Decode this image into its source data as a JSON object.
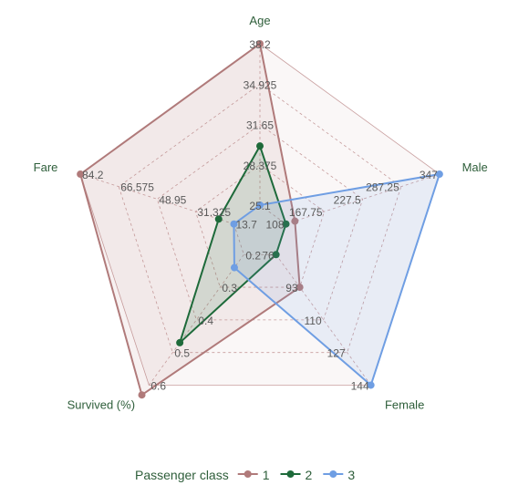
{
  "chart_data": {
    "type": "radar",
    "axes": [
      {
        "name": "Age",
        "ticks": [
          "25.1",
          "28.375",
          "31.65",
          "34.925",
          "38.2"
        ],
        "min": 25.1,
        "max": 38.2
      },
      {
        "name": "Male",
        "ticks": [
          "108",
          "167.75",
          "227.5",
          "287.25",
          "347"
        ],
        "min": 108,
        "max": 347
      },
      {
        "name": "Female",
        "ticks": [
          "76",
          "93",
          "110",
          "127",
          "144"
        ],
        "min": 76,
        "max": 144
      },
      {
        "name": "Survived (%)",
        "ticks": [
          "0.2",
          "0.3",
          "0.4",
          "0.5",
          "0.6"
        ],
        "min": 0.2,
        "max": 0.6
      },
      {
        "name": "Fare",
        "ticks": [
          "13.7",
          "31.325",
          "48.95",
          "66.575",
          "84.2"
        ],
        "min": 13.7,
        "max": 84.2
      }
    ],
    "series": [
      {
        "name": "1",
        "color": "#b07a7a",
        "fill": "#b07a7a",
        "values": [
          38.2,
          122,
          93,
          0.63,
          84.2
        ]
      },
      {
        "name": "2",
        "color": "#1e6a3a",
        "fill": "#1e6a3a",
        "values": [
          29.9,
          108,
          76,
          0.47,
          20.7
        ]
      },
      {
        "name": "3",
        "color": "#6f9ee3",
        "fill": "#6f9ee3",
        "values": [
          25.1,
          347,
          144,
          0.24,
          13.7
        ]
      }
    ],
    "legend": {
      "title": "Passenger class",
      "position": "bottom"
    },
    "grid": true
  }
}
